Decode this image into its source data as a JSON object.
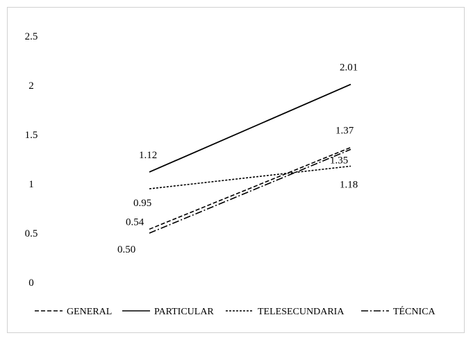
{
  "chart_data": {
    "type": "line",
    "title": "",
    "xlabel": "",
    "ylabel": "",
    "ylim": [
      0,
      2.5
    ],
    "yticks": [
      "0",
      "0.5",
      "1",
      "1.5",
      "2",
      "2.5"
    ],
    "grid": false,
    "legend_position": "bottom",
    "x": [
      "",
      ""
    ],
    "series": [
      {
        "name": "GENERAL",
        "values": [
          0.54,
          1.37
        ],
        "labels": [
          "0.54",
          "1.37"
        ],
        "style": "dashed"
      },
      {
        "name": "PARTICULAR",
        "values": [
          1.12,
          2.01
        ],
        "labels": [
          "1.12",
          "2.01"
        ],
        "style": "solid"
      },
      {
        "name": "TELESECUNDARIA",
        "values": [
          0.95,
          1.18
        ],
        "labels": [
          "0.95",
          "1.18"
        ],
        "style": "dotted"
      },
      {
        "name": "TÉCNICA",
        "values": [
          0.5,
          1.35
        ],
        "labels": [
          "0.50",
          "1.35"
        ],
        "style": "dashdot"
      }
    ],
    "colors": {
      "line": "#000000",
      "frame": "#d0d0d0"
    }
  }
}
